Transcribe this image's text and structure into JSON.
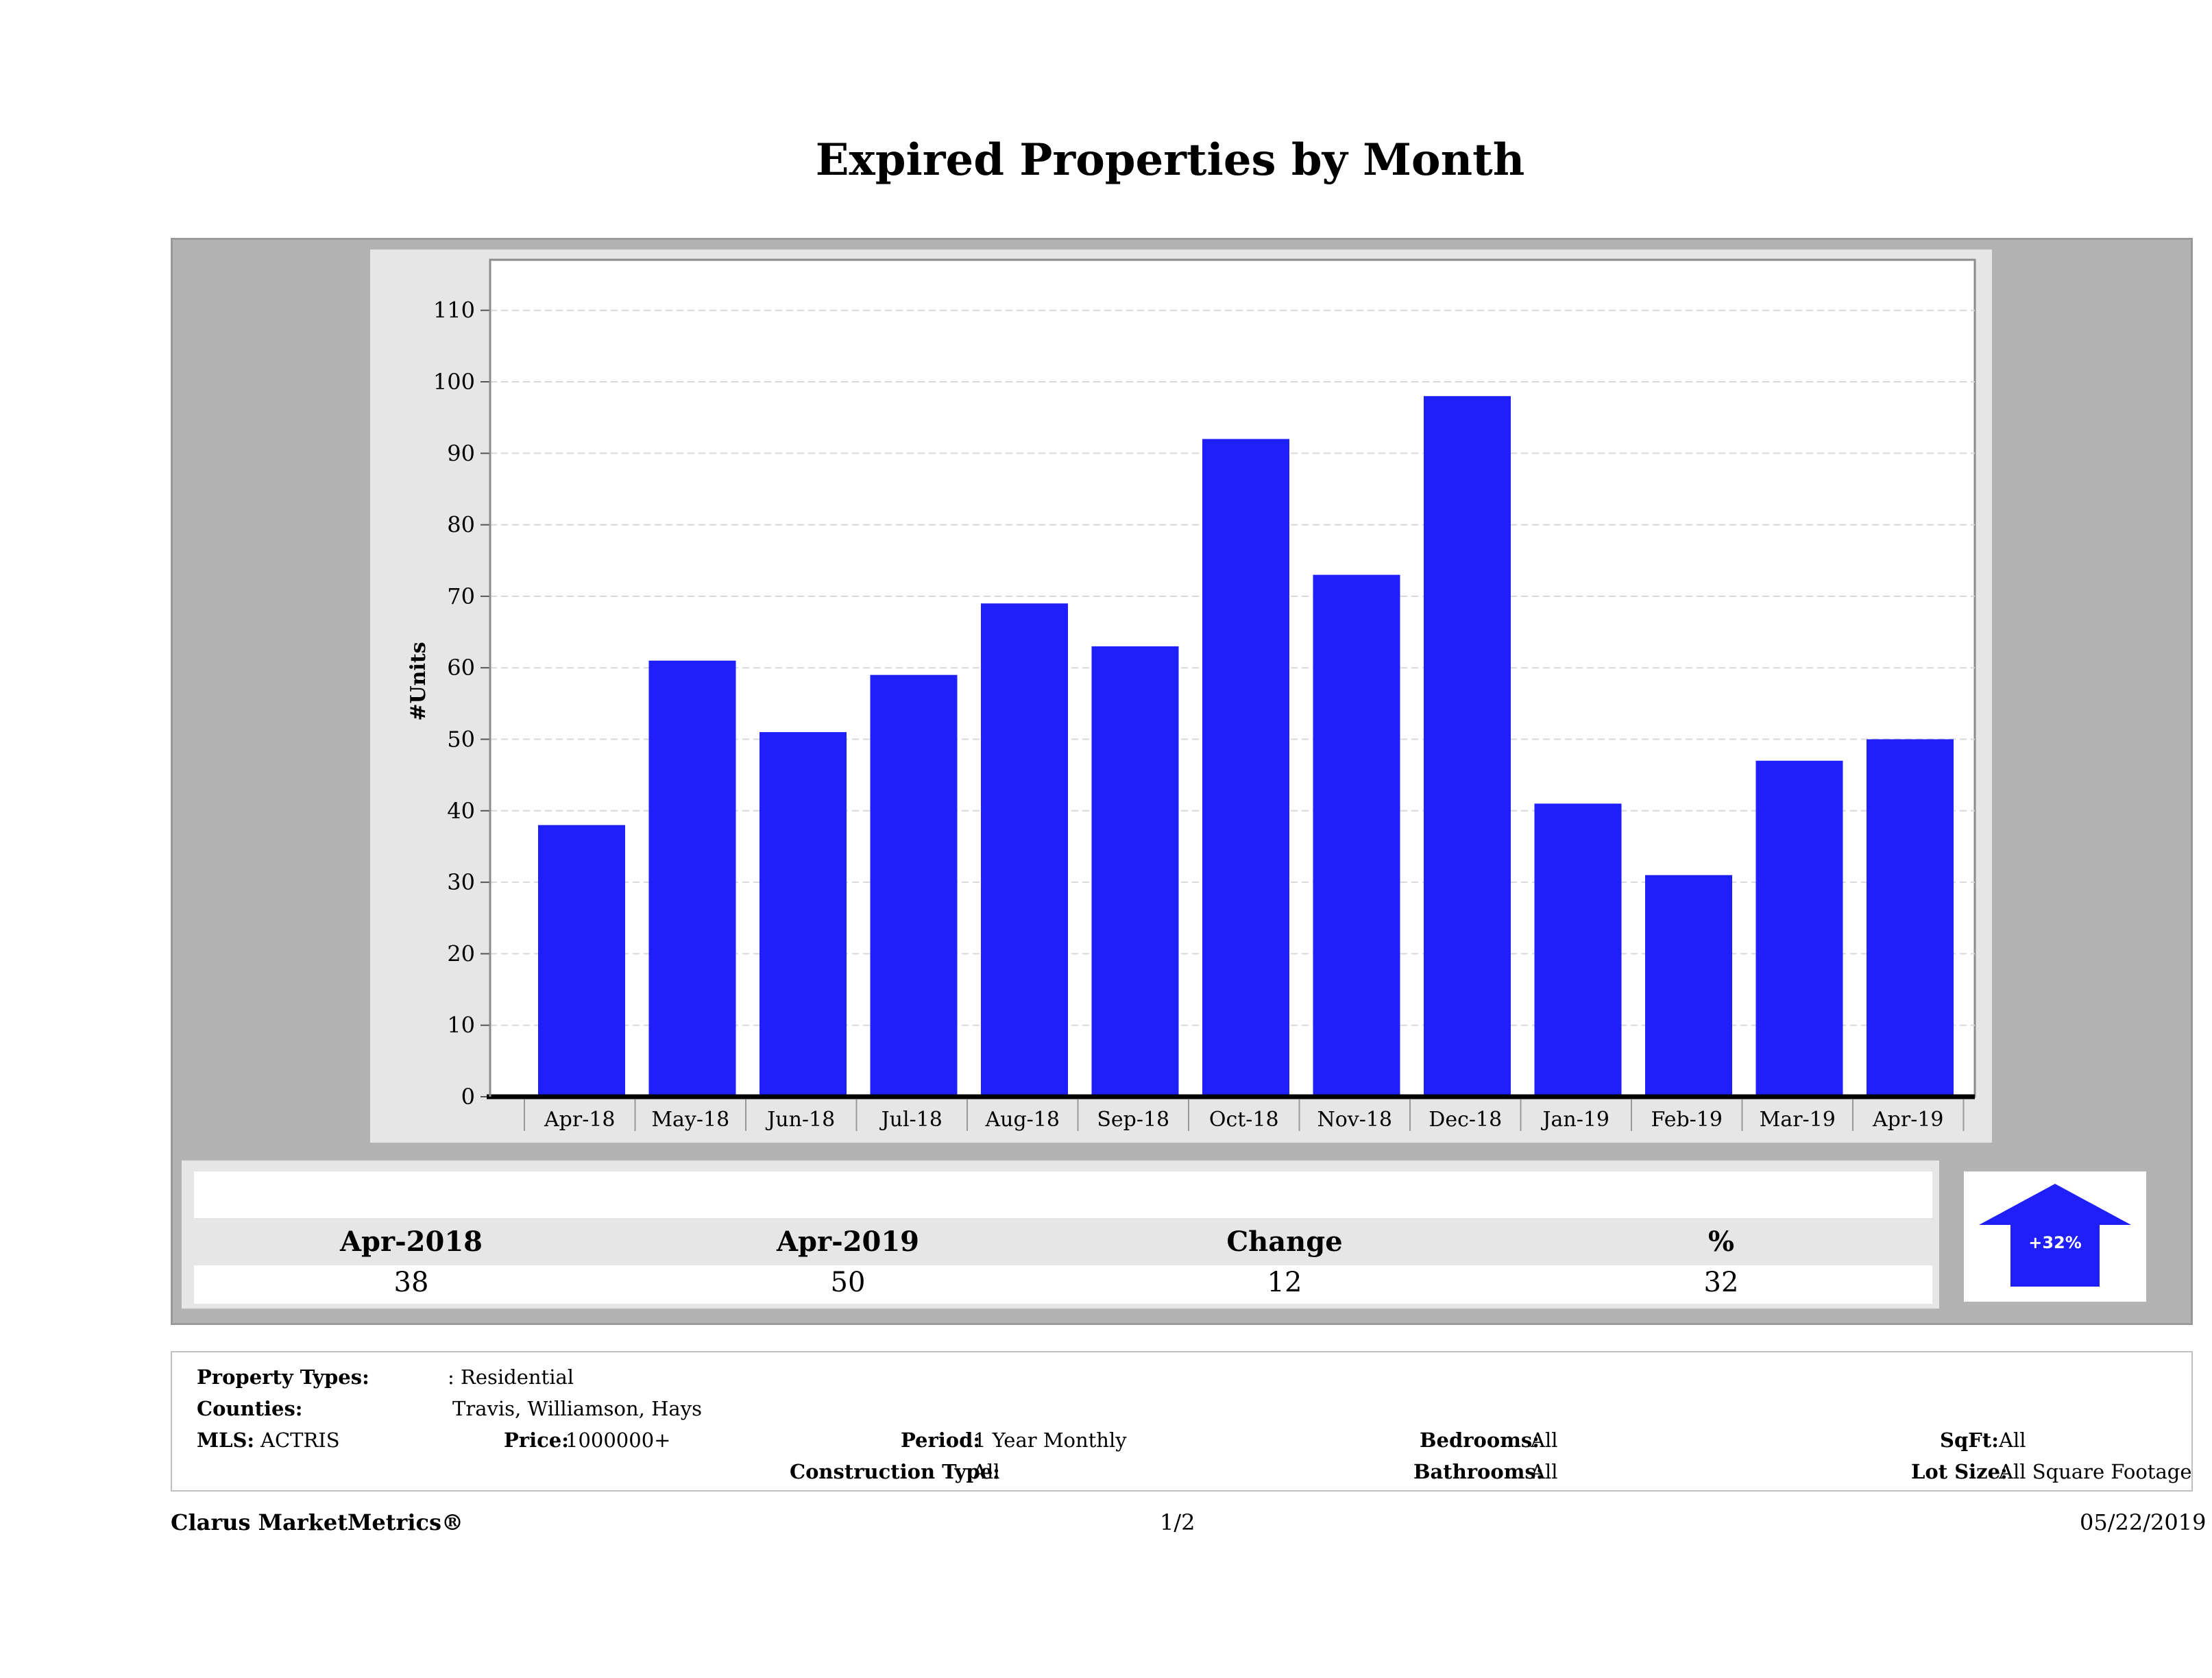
{
  "page": {
    "title": "Expired Properties by Month"
  },
  "colors": {
    "bar": "#1f1ffa",
    "outer_panel": "#b3b3b3",
    "chart_panel": "#e6e6e6",
    "plot_bg": "#ffffff",
    "grid": "#d9d9d9"
  },
  "chart_data": {
    "type": "bar",
    "title": "Expired Properties by Month",
    "ylabel": "#Units",
    "xlabel": "",
    "categories": [
      "Apr-18",
      "May-18",
      "Jun-18",
      "Jul-18",
      "Aug-18",
      "Sep-18",
      "Oct-18",
      "Nov-18",
      "Dec-18",
      "Jan-19",
      "Feb-19",
      "Mar-19",
      "Apr-19"
    ],
    "values": [
      38,
      61,
      51,
      59,
      69,
      63,
      92,
      73,
      98,
      41,
      31,
      47,
      50
    ],
    "ylim": [
      0,
      117
    ],
    "yticks": [
      0,
      10,
      20,
      30,
      40,
      50,
      60,
      70,
      80,
      90,
      100,
      110
    ],
    "grid": "horizontal dashed",
    "legend": "none"
  },
  "stats": {
    "headers": [
      "Apr-2018",
      "Apr-2019",
      "Change",
      "%"
    ],
    "values": [
      "38",
      "50",
      "12",
      "32"
    ],
    "arrow_label": "+32%",
    "arrow_direction": "up",
    "arrow_icon": "up-arrow-icon"
  },
  "filters": {
    "property_types_label": "Property Types:",
    "property_types_value": ": Residential",
    "counties_label": "Counties:",
    "counties_value": "Travis, Williamson, Hays",
    "mls_label": "MLS:",
    "mls_value": "ACTRIS",
    "price_label": "Price:",
    "price_value": "1000000+",
    "period_label": "Period:",
    "period_value": "1 Year Monthly",
    "construction_label": "Construction Type:",
    "construction_value": "All",
    "bedrooms_label": "Bedrooms:",
    "bedrooms_value": "All",
    "bathrooms_label": "Bathrooms:",
    "bathrooms_value": "All",
    "sqft_label": "SqFt:",
    "sqft_value": "All",
    "lot_label": "Lot Size:",
    "lot_value": "All Square Footage"
  },
  "footer": {
    "brand": "Clarus MarketMetrics®",
    "page": "1/2",
    "date": "05/22/2019"
  }
}
